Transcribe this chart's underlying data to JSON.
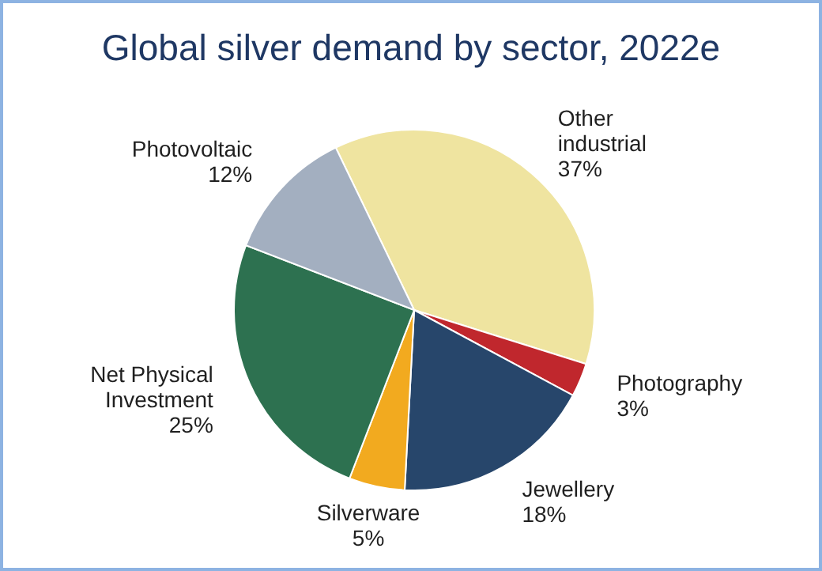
{
  "chart_data": {
    "type": "pie",
    "title": "Global silver demand  by sector, 2022e",
    "categories": [
      "Other industrial",
      "Photography",
      "Jewellery",
      "Silverware",
      "Net Physical Investment",
      "Photovoltaic"
    ],
    "values": [
      37,
      3,
      18,
      5,
      25,
      12
    ],
    "value_labels": [
      "37%",
      "3%",
      "18%",
      "5%",
      "25%",
      "12%"
    ],
    "colors": [
      "#efe4a0",
      "#c0272d",
      "#27466b",
      "#f2aa1f",
      "#2d7150",
      "#a3afc0"
    ]
  }
}
